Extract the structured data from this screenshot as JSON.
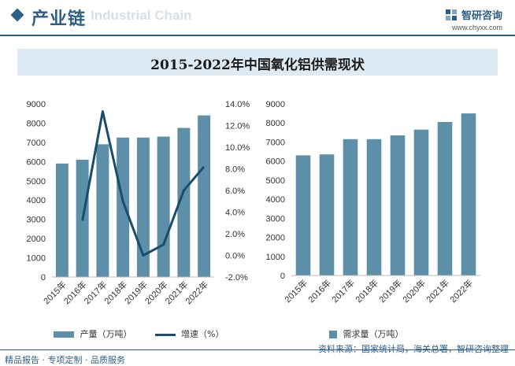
{
  "header": {
    "section_title": "产业链",
    "watermark_text": "Industrial Chain",
    "brand_name": "智研咨询",
    "brand_url": "www.chyxx.com"
  },
  "chart_title": "2015-2022年中国氧化铝供需现状",
  "colors": {
    "bar": "#5d8fa8",
    "line": "#184d6b",
    "title_bg": "#ddeaf3",
    "brand": "#2d5f86"
  },
  "chart_data": [
    {
      "type": "bar",
      "categories": [
        "2015年",
        "2016年",
        "2017年",
        "2018年",
        "2019年",
        "2020年",
        "2021年",
        "2022年"
      ],
      "series": [
        {
          "name": "产量（万吨）",
          "type": "bar",
          "axis": "left",
          "values": [
            5900,
            6100,
            6900,
            7250,
            7250,
            7300,
            7750,
            8400
          ]
        },
        {
          "name": "增速（%）",
          "type": "line",
          "axis": "right",
          "values": [
            null,
            3.2,
            13.3,
            5.0,
            0.0,
            1.0,
            6.0,
            8.2
          ]
        }
      ],
      "y_ticks": [
        "0",
        "1000",
        "2000",
        "3000",
        "4000",
        "5000",
        "6000",
        "7000",
        "8000",
        "9000"
      ],
      "y2_ticks": [
        "-2.0%",
        "0.0%",
        "2.0%",
        "4.0%",
        "6.0%",
        "8.0%",
        "10.0%",
        "12.0%",
        "14.0%"
      ],
      "ylim": [
        0,
        9000
      ],
      "y2lim": [
        -2,
        14
      ],
      "legend": [
        "产量（万吨）",
        "增速（%）"
      ],
      "legend_position": "bottom"
    },
    {
      "type": "bar",
      "categories": [
        "2015年",
        "2016年",
        "2017年",
        "2018年",
        "2019年",
        "2020年",
        "2021年",
        "2022年"
      ],
      "series": [
        {
          "name": "需求量（万吨）",
          "values": [
            6300,
            6350,
            7150,
            7150,
            7350,
            7650,
            8050,
            8500
          ]
        }
      ],
      "y_ticks": [
        "0",
        "1000",
        "2000",
        "3000",
        "4000",
        "5000",
        "6000",
        "7000",
        "8000",
        "9000"
      ],
      "ylim": [
        0,
        9000
      ],
      "legend": [
        "需求量（万吨）"
      ],
      "legend_position": "bottom"
    }
  ],
  "footer": {
    "left": "精品报告 · 专项定制 · 品质服务",
    "source": "资料来源：国家统计局，海关总署，智研咨询整理"
  }
}
